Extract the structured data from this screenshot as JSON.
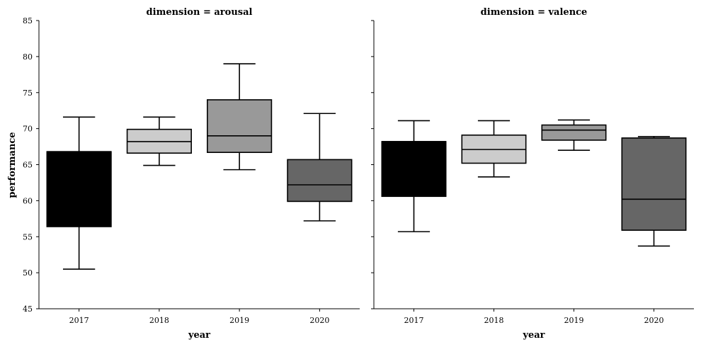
{
  "chart_data": {
    "type": "boxplot",
    "ylabel": "performance",
    "xlabel": "year",
    "ylim": [
      45,
      85
    ],
    "yticks": [
      45,
      50,
      55,
      60,
      65,
      70,
      75,
      80,
      85
    ],
    "grid": false,
    "categories": [
      "2017",
      "2018",
      "2019",
      "2020"
    ],
    "category_colors": [
      "#000000",
      "#cccccc",
      "#999999",
      "#666666"
    ],
    "panels": [
      {
        "title": "dimension = arousal",
        "boxes": [
          {
            "category": "2017",
            "whisker_low": 50.5,
            "q1": 56.4,
            "median": 66.8,
            "q3": 66.8,
            "whisker_high": 71.6
          },
          {
            "category": "2018",
            "whisker_low": 64.9,
            "q1": 66.6,
            "median": 68.2,
            "q3": 69.9,
            "whisker_high": 71.6
          },
          {
            "category": "2019",
            "whisker_low": 64.3,
            "q1": 66.7,
            "median": 69.0,
            "q3": 74.0,
            "whisker_high": 79.0
          },
          {
            "category": "2020",
            "whisker_low": 57.2,
            "q1": 59.9,
            "median": 62.2,
            "q3": 65.7,
            "whisker_high": 72.1
          }
        ]
      },
      {
        "title": "dimension = valence",
        "boxes": [
          {
            "category": "2017",
            "whisker_low": 55.7,
            "q1": 60.6,
            "median": 68.2,
            "q3": 68.2,
            "whisker_high": 71.1
          },
          {
            "category": "2018",
            "whisker_low": 63.3,
            "q1": 65.2,
            "median": 67.1,
            "q3": 69.1,
            "whisker_high": 71.1
          },
          {
            "category": "2019",
            "whisker_low": 67.0,
            "q1": 68.4,
            "median": 69.8,
            "q3": 70.5,
            "whisker_high": 71.2
          },
          {
            "category": "2020",
            "whisker_low": 53.7,
            "q1": 55.9,
            "median": 60.2,
            "q3": 68.7,
            "whisker_high": 68.9
          }
        ]
      }
    ]
  }
}
